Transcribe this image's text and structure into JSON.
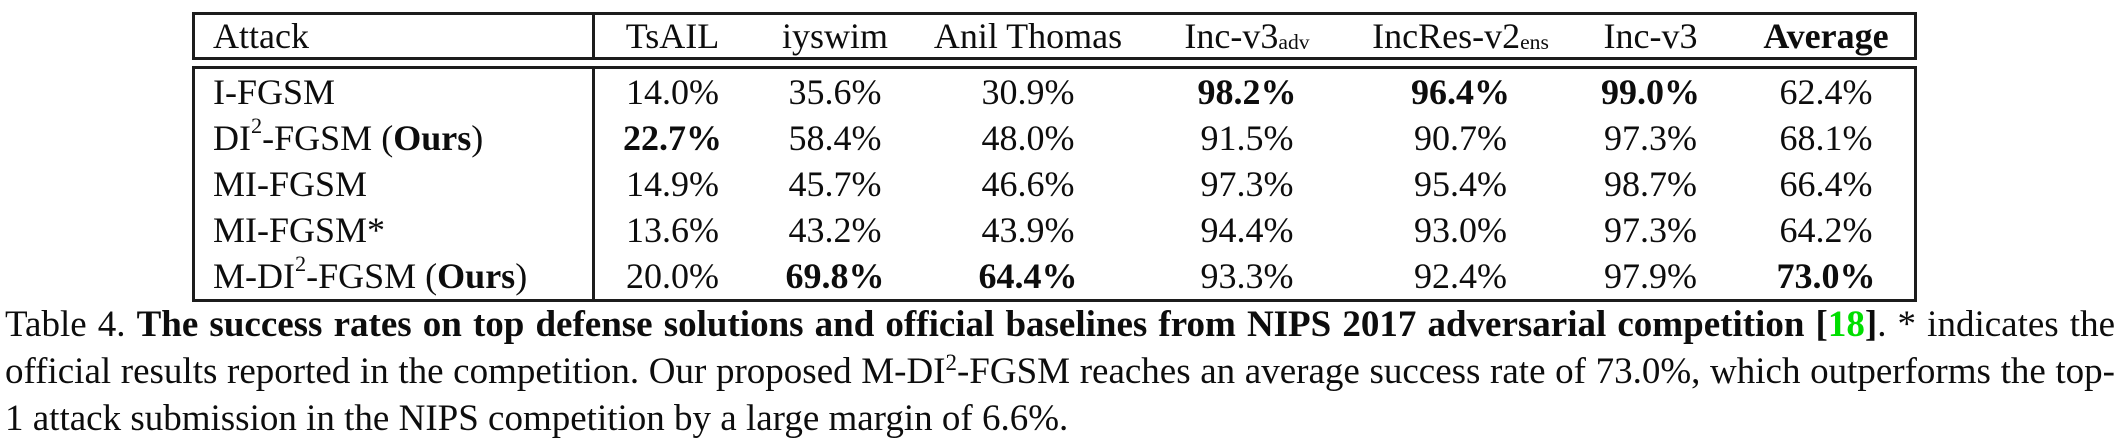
{
  "colors": {
    "citation_green": "#00DE00",
    "text": "#0d0d0d",
    "border": "#1c1c1c"
  },
  "table": {
    "columns": [
      {
        "label": "Attack",
        "bold": false
      },
      {
        "label": "TsAIL",
        "bold": false
      },
      {
        "label": "iyswim",
        "bold": false
      },
      {
        "label": "Anil Thomas",
        "bold": false
      },
      {
        "label": "Inc-v3",
        "sub": "adv",
        "bold": false
      },
      {
        "label": "IncRes-v2",
        "sub": "ens",
        "bold": false
      },
      {
        "label": "Inc-v3",
        "bold": false
      },
      {
        "label": "Average",
        "bold": true
      }
    ],
    "rows": [
      {
        "attack": [
          {
            "t": "I-FGSM"
          }
        ],
        "values": [
          {
            "v": "14.0%"
          },
          {
            "v": "35.6%"
          },
          {
            "v": "30.9%"
          },
          {
            "v": "98.2%",
            "b": true
          },
          {
            "v": "96.4%",
            "b": true
          },
          {
            "v": "99.0%",
            "b": true
          },
          {
            "v": "62.4%"
          }
        ]
      },
      {
        "attack": [
          {
            "t": "DI"
          },
          {
            "t": "2",
            "sup": true
          },
          {
            "t": "-FGSM ("
          },
          {
            "t": "Ours",
            "b": true
          },
          {
            "t": ")"
          }
        ],
        "values": [
          {
            "v": "22.7%",
            "b": true
          },
          {
            "v": "58.4%"
          },
          {
            "v": "48.0%"
          },
          {
            "v": "91.5%"
          },
          {
            "v": "90.7%"
          },
          {
            "v": "97.3%"
          },
          {
            "v": "68.1%"
          }
        ]
      },
      {
        "attack": [
          {
            "t": "MI-FGSM"
          }
        ],
        "values": [
          {
            "v": "14.9%"
          },
          {
            "v": "45.7%"
          },
          {
            "v": "46.6%"
          },
          {
            "v": "97.3%"
          },
          {
            "v": "95.4%"
          },
          {
            "v": "98.7%"
          },
          {
            "v": "66.4%"
          }
        ]
      },
      {
        "attack": [
          {
            "t": "MI-FGSM*"
          }
        ],
        "values": [
          {
            "v": "13.6%"
          },
          {
            "v": "43.2%"
          },
          {
            "v": "43.9%"
          },
          {
            "v": "94.4%"
          },
          {
            "v": "93.0%"
          },
          {
            "v": "97.3%"
          },
          {
            "v": "64.2%"
          }
        ]
      },
      {
        "attack": [
          {
            "t": "M-DI"
          },
          {
            "t": "2",
            "sup": true
          },
          {
            "t": "-FGSM ("
          },
          {
            "t": "Ours",
            "b": true
          },
          {
            "t": ")"
          }
        ],
        "values": [
          {
            "v": "20.0%"
          },
          {
            "v": "69.8%",
            "b": true
          },
          {
            "v": "64.4%",
            "b": true
          },
          {
            "v": "93.3%"
          },
          {
            "v": "92.4%"
          },
          {
            "v": "97.9%"
          },
          {
            "v": "73.0%",
            "b": true
          }
        ]
      }
    ]
  },
  "caption": {
    "segments": [
      {
        "t": "Table 4. "
      },
      {
        "t": "The success rates on top defense solutions and official baselines from NIPS 2017 adversarial competition [",
        "b": true
      },
      {
        "t": "18",
        "b": true,
        "color": "#00DE00"
      },
      {
        "t": "]",
        "b": true
      },
      {
        "t": ". * indicates the official results reported in the competition. Our proposed M-DI"
      },
      {
        "t": "2",
        "sup": true
      },
      {
        "t": "-FGSM reaches an average success rate of 73.0%, which outperforms the top-1 attack submission in the NIPS competition by a large margin of 6.6%."
      }
    ]
  }
}
